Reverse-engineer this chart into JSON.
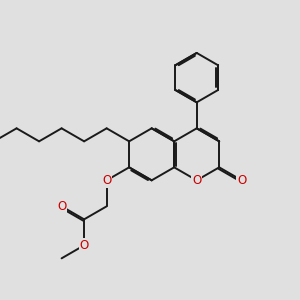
{
  "bg": "#e0e0e0",
  "bc": "#1a1a1a",
  "hc": "#cc0000",
  "lw": 1.4,
  "dbo": 0.048,
  "fs": 8.5,
  "bl": 0.78,
  "xlim": [
    0.5,
    9.5
  ],
  "ylim": [
    1.2,
    8.5
  ]
}
